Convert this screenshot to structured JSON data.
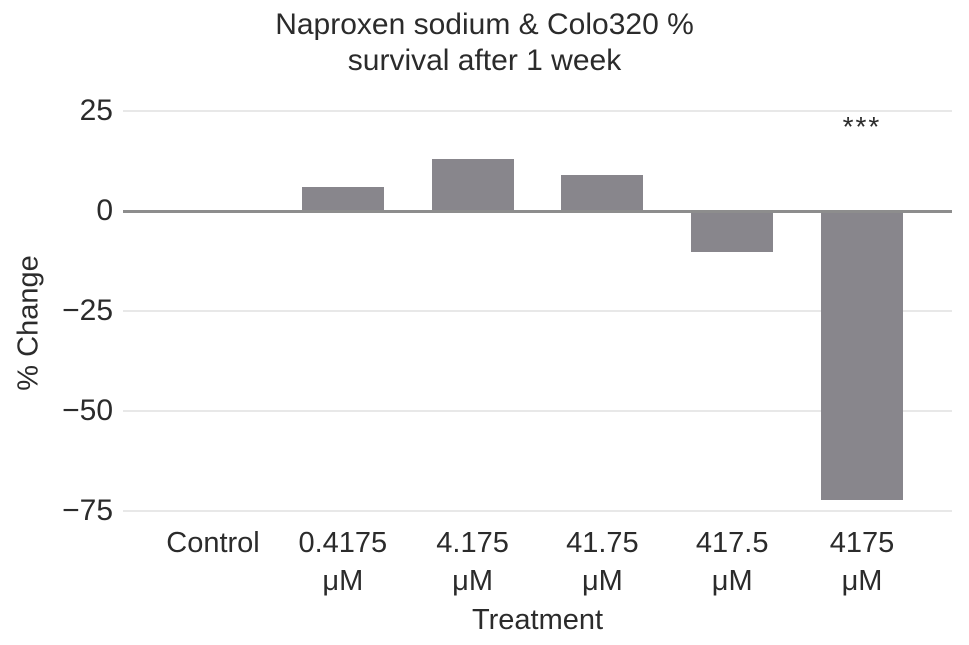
{
  "title": {
    "line1": "Naproxen sodium & Colo320 %",
    "line2": "survival after 1 week"
  },
  "y_axis": {
    "label": "% Change",
    "tick_labels": [
      "25",
      "0",
      "−25",
      "−50",
      "−75"
    ]
  },
  "x_axis": {
    "label": "Treatment",
    "categories_display": [
      {
        "value": "Control",
        "unit": ""
      },
      {
        "value": "0.4175",
        "unit": "μM"
      },
      {
        "value": "4.175",
        "unit": "μM"
      },
      {
        "value": "41.75",
        "unit": "μM"
      },
      {
        "value": "417.5",
        "unit": "μM"
      },
      {
        "value": "4175",
        "unit": "μM"
      }
    ]
  },
  "chart_data": {
    "type": "bar",
    "title": "Naproxen sodium & Colo320 % survival after 1 week",
    "xlabel": "Treatment",
    "ylabel": "% Change",
    "categories": [
      "Control",
      "0.4175 μM",
      "4.175 μM",
      "41.75 μM",
      "417.5 μM",
      "4175 μM"
    ],
    "values": [
      0,
      6,
      13,
      9,
      -10,
      -72
    ],
    "yticks": [
      25,
      0,
      -25,
      -50,
      -75
    ],
    "ylim": [
      -75,
      25
    ],
    "grid": true,
    "legend": "none",
    "bar_color": "#88868c",
    "zero_line_color": "#8d8d8d",
    "gridline_color": "#e8e8e8",
    "annotations": [
      {
        "index": 5,
        "text": "***",
        "meaning": "significance-marker"
      }
    ]
  }
}
